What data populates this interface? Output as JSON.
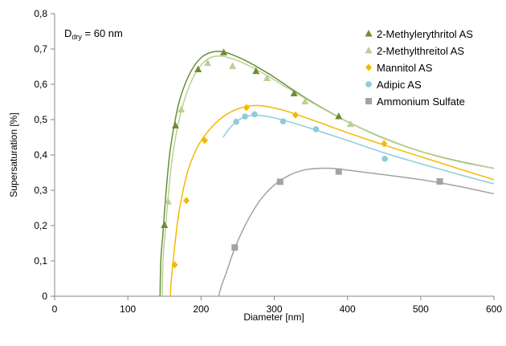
{
  "chart_data": {
    "type": "scatter",
    "title": "",
    "xlabel": "Diameter [nm]",
    "ylabel": "Supersaturation [%]",
    "xlim": [
      0,
      600
    ],
    "ylim": [
      0,
      0.8
    ],
    "x_ticks": [
      0,
      100,
      200,
      300,
      400,
      500,
      600
    ],
    "y_ticks": [
      0,
      0.1,
      0.2,
      0.3,
      0.4,
      0.5,
      0.6,
      0.7,
      0.8
    ],
    "x_tick_labels": [
      "0",
      "100",
      "200",
      "300",
      "400",
      "500",
      "600"
    ],
    "y_tick_labels": [
      "0",
      "0,1",
      "0,2",
      "0,3",
      "0,4",
      "0,5",
      "0,6",
      "0,7",
      "0,8"
    ],
    "grid": false,
    "legend_position": "top-right",
    "annotation": {
      "main": "D",
      "sub": "dry",
      "rest": " = 60 nm"
    },
    "series": [
      {
        "name": "2-Methylerythritol AS",
        "marker": "triangle",
        "color": "#6b8e35",
        "points": [
          [
            150,
            0.201
          ],
          [
            165,
            0.483
          ],
          [
            196,
            0.642
          ],
          [
            231,
            0.69
          ],
          [
            275,
            0.637
          ],
          [
            327,
            0.574
          ],
          [
            388,
            0.509
          ]
        ],
        "curve": [
          [
            144,
            0
          ],
          [
            145,
            0.1
          ],
          [
            148,
            0.18
          ],
          [
            152,
            0.29
          ],
          [
            157,
            0.4
          ],
          [
            163,
            0.48
          ],
          [
            170,
            0.55
          ],
          [
            180,
            0.61
          ],
          [
            190,
            0.65
          ],
          [
            200,
            0.675
          ],
          [
            210,
            0.688
          ],
          [
            220,
            0.693
          ],
          [
            230,
            0.692
          ],
          [
            240,
            0.686
          ],
          [
            260,
            0.668
          ],
          [
            280,
            0.645
          ],
          [
            300,
            0.62
          ],
          [
            325,
            0.585
          ],
          [
            350,
            0.552
          ],
          [
            375,
            0.522
          ],
          [
            400,
            0.494
          ],
          [
            450,
            0.447
          ],
          [
            500,
            0.41
          ],
          [
            550,
            0.383
          ],
          [
            600,
            0.362
          ]
        ]
      },
      {
        "name": "2-Methylthreitol AS",
        "marker": "triangle",
        "color": "#b8d195",
        "points": [
          [
            155,
            0.268
          ],
          [
            173,
            0.528
          ],
          [
            209,
            0.66
          ],
          [
            243,
            0.651
          ],
          [
            290,
            0.617
          ],
          [
            342,
            0.551
          ],
          [
            404,
            0.487
          ]
        ],
        "curve": [
          [
            147,
            0
          ],
          [
            148,
            0.1
          ],
          [
            151,
            0.18
          ],
          [
            155,
            0.28
          ],
          [
            160,
            0.38
          ],
          [
            167,
            0.47
          ],
          [
            175,
            0.54
          ],
          [
            185,
            0.6
          ],
          [
            195,
            0.64
          ],
          [
            205,
            0.665
          ],
          [
            215,
            0.677
          ],
          [
            225,
            0.68
          ],
          [
            235,
            0.677
          ],
          [
            250,
            0.667
          ],
          [
            270,
            0.648
          ],
          [
            290,
            0.625
          ],
          [
            310,
            0.6
          ],
          [
            330,
            0.575
          ],
          [
            350,
            0.55
          ],
          [
            375,
            0.521
          ],
          [
            400,
            0.494
          ],
          [
            450,
            0.448
          ],
          [
            500,
            0.41
          ],
          [
            550,
            0.382
          ],
          [
            600,
            0.362
          ]
        ]
      },
      {
        "name": "Mannitol AS",
        "marker": "diamond",
        "color": "#f5b800",
        "points": [
          [
            164,
            0.089
          ],
          [
            180,
            0.271
          ],
          [
            205,
            0.441
          ],
          [
            262,
            0.534
          ],
          [
            329,
            0.513
          ],
          [
            450,
            0.432
          ]
        ],
        "curve": [
          [
            158,
            0
          ],
          [
            160,
            0.06
          ],
          [
            165,
            0.16
          ],
          [
            170,
            0.24
          ],
          [
            180,
            0.34
          ],
          [
            190,
            0.4
          ],
          [
            200,
            0.44
          ],
          [
            215,
            0.48
          ],
          [
            230,
            0.508
          ],
          [
            245,
            0.526
          ],
          [
            260,
            0.536
          ],
          [
            275,
            0.54
          ],
          [
            290,
            0.537
          ],
          [
            310,
            0.528
          ],
          [
            330,
            0.515
          ],
          [
            360,
            0.493
          ],
          [
            400,
            0.463
          ],
          [
            450,
            0.428
          ],
          [
            500,
            0.395
          ],
          [
            550,
            0.362
          ],
          [
            600,
            0.33
          ]
        ]
      },
      {
        "name": "Adipic AS",
        "marker": "circle",
        "color": "#8ecbdb",
        "points": [
          [
            248,
            0.494
          ],
          [
            260,
            0.509
          ],
          [
            273,
            0.515
          ],
          [
            312,
            0.495
          ],
          [
            357,
            0.473
          ],
          [
            451,
            0.389
          ]
        ],
        "curve": [
          [
            230,
            0.45
          ],
          [
            240,
            0.478
          ],
          [
            250,
            0.497
          ],
          [
            260,
            0.508
          ],
          [
            270,
            0.512
          ],
          [
            280,
            0.512
          ],
          [
            300,
            0.505
          ],
          [
            325,
            0.491
          ],
          [
            350,
            0.475
          ],
          [
            375,
            0.458
          ],
          [
            400,
            0.441
          ],
          [
            450,
            0.406
          ],
          [
            500,
            0.375
          ],
          [
            550,
            0.346
          ],
          [
            600,
            0.318
          ]
        ]
      },
      {
        "name": "Ammonium Sulfate",
        "marker": "square",
        "color": "#a3a3a3",
        "points": [
          [
            246,
            0.138
          ],
          [
            308,
            0.324
          ],
          [
            388,
            0.353
          ],
          [
            526,
            0.325
          ]
        ],
        "curve": [
          [
            224,
            0
          ],
          [
            228,
            0.03
          ],
          [
            235,
            0.07
          ],
          [
            245,
            0.13
          ],
          [
            260,
            0.2
          ],
          [
            280,
            0.27
          ],
          [
            300,
            0.315
          ],
          [
            320,
            0.342
          ],
          [
            340,
            0.357
          ],
          [
            360,
            0.362
          ],
          [
            380,
            0.362
          ],
          [
            400,
            0.357
          ],
          [
            450,
            0.344
          ],
          [
            500,
            0.33
          ],
          [
            550,
            0.312
          ],
          [
            600,
            0.29
          ]
        ]
      }
    ]
  }
}
